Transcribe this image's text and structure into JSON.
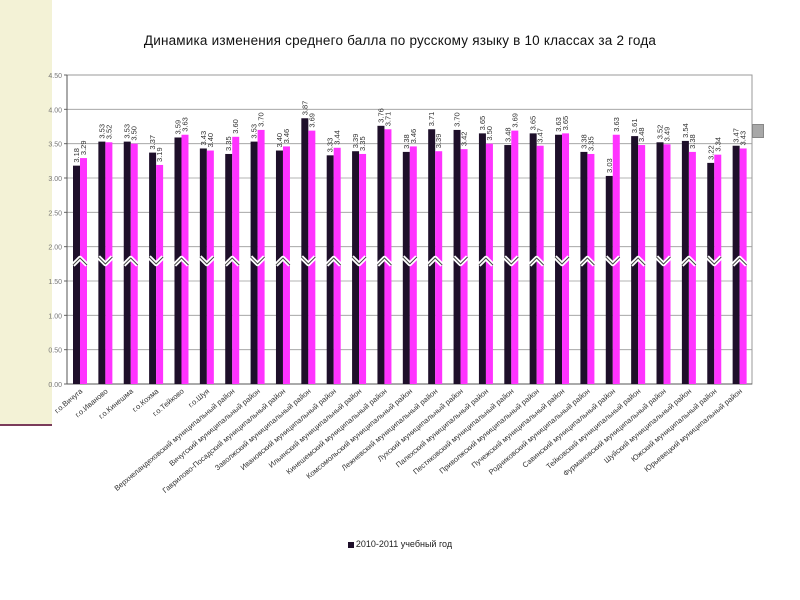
{
  "chart_data": {
    "type": "bar",
    "title": "Динамика изменения среднего балла по русскому языку в 10 классах за 2 года",
    "ylim": [
      0,
      4.5
    ],
    "yticks": [
      "0.00",
      "0.50",
      "1.00",
      "1.50",
      "2.00",
      "2.50",
      "3.00",
      "3.50",
      "4.00",
      "4.50"
    ],
    "grid": true,
    "legend_position": "bottom",
    "categories": [
      "г.о.Вичуга",
      "г.о.Иваново",
      "г.о.Кинешма",
      "г.о.Кохма",
      "г.о.Тейково",
      "г.о.Шуя",
      "Верхнеландеховский муниципальный район",
      "Вичугский муниципальный район",
      "Гаврилово-Посадский муниципальный район",
      "Заволжский муниципальный район",
      "Ивановский муниципальный район",
      "Ильинский муниципальный район",
      "Кинешемский муниципальный район",
      "Комсомольский муниципальный район",
      "Лежневский муниципальный район",
      "Лухский муниципальный район",
      "Палехский муниципальный район",
      "Пестяковский муниципальный район",
      "Приволжский муниципальный район",
      "Пучежский муниципальный район",
      "Родниковский муниципальный район",
      "Савинский муниципальный район",
      "Тейковский муниципальный район",
      "Фурмановский муниципальный район",
      "Шуйский муниципальный район",
      "Южский муниципальный район",
      "Юрьевецкий муниципальный район"
    ],
    "series": [
      {
        "name": "2010-2011 учебный год",
        "color": "#1e0f2a",
        "values": [
          3.18,
          3.53,
          3.53,
          3.37,
          3.59,
          3.43,
          3.35,
          3.53,
          3.4,
          3.87,
          3.33,
          3.39,
          3.76,
          3.38,
          3.71,
          3.7,
          3.65,
          3.48,
          3.65,
          3.63,
          3.38,
          3.03,
          3.61,
          3.52,
          3.54,
          3.22,
          3.47
        ]
      },
      {
        "color": "#ff33ff",
        "values": [
          3.29,
          3.52,
          3.5,
          3.19,
          3.63,
          3.4,
          3.6,
          3.7,
          3.46,
          3.69,
          3.44,
          3.35,
          3.71,
          3.46,
          3.39,
          3.42,
          3.5,
          3.69,
          3.47,
          3.65,
          3.35,
          3.63,
          3.48,
          3.49,
          3.38,
          3.34,
          3.43
        ]
      }
    ]
  }
}
